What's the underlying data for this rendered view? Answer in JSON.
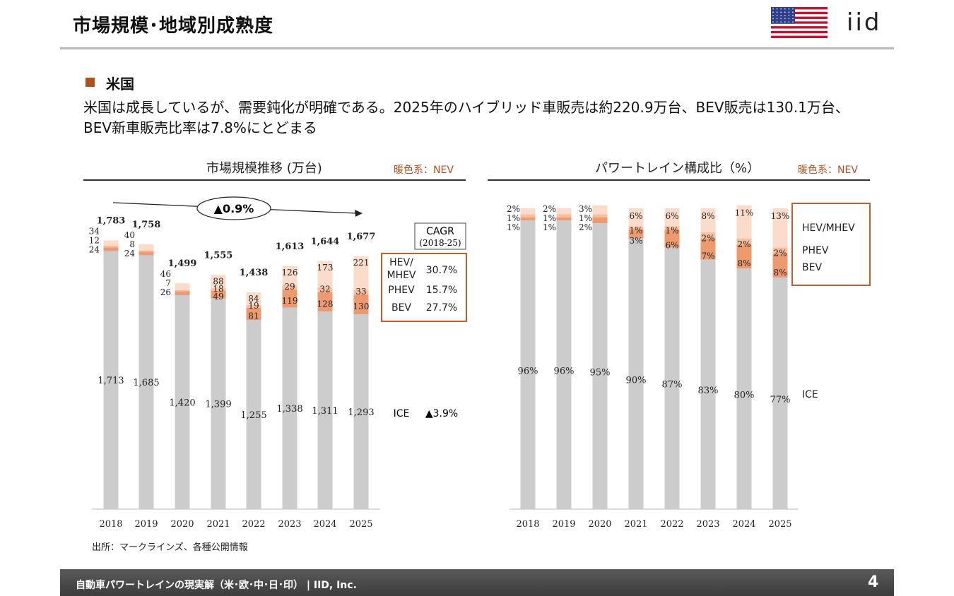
{
  "header": {
    "title": "市場規模･地域別成熟度",
    "logo": "iid",
    "flag_icon": "us-flag-icon"
  },
  "section": {
    "title": "米国"
  },
  "lead": "米国は成長しているが、需要鈍化が明確である。2025年のハイブリッド車販売は約220.9万台、BEV販売は130.1万台、BEV新車販売比率は7.8%にとどまる",
  "colors": {
    "ice": "#cccccc",
    "bev": "#ec9a6e",
    "phev": "#f6bf9f",
    "hev": "#fbdccb",
    "accent": "#c0602c"
  },
  "chart_left": {
    "title": "市場規模推移 (万台)",
    "note": "暖色系：NEV"
  },
  "chart_right": {
    "title": "パワートレイン構成比（%）",
    "note": "暖色系：NEV"
  },
  "source": "出所：マークラインズ、各種公開情報",
  "footer": {
    "text": "自動車パワートレインの現実解（米･欧･中･日･印） |  IID, Inc.",
    "page": "4"
  },
  "chart_data": [
    {
      "type": "bar",
      "stacked": true,
      "categories": [
        "2018",
        "2019",
        "2020",
        "2021",
        "2022",
        "2023",
        "2024",
        "2025"
      ],
      "series": [
        {
          "name": "ICE",
          "values": [
            1713,
            1685,
            1420,
            1399,
            1255,
            1338,
            1311,
            1293
          ]
        },
        {
          "name": "BEV",
          "values": [
            24,
            24,
            26,
            49,
            81,
            119,
            128,
            130
          ]
        },
        {
          "name": "PHEV",
          "values": [
            12,
            8,
            7,
            18,
            19,
            29,
            32,
            33
          ]
        },
        {
          "name": "HEV/MHEV",
          "values": [
            34,
            40,
            46,
            88,
            84,
            126,
            173,
            221
          ]
        }
      ],
      "totals": [
        "1,783",
        "1,758",
        "1,499",
        "1,555",
        "1,438",
        "1,613",
        "1,644",
        "1,677"
      ],
      "labels": {
        "ICE": [
          "1,713",
          "1,685",
          "1,420",
          "1,399",
          "1,255",
          "1,338",
          "1,311",
          "1,293"
        ],
        "BEV": [
          "24",
          "24",
          "26",
          "49",
          "81",
          "119",
          "128",
          "130"
        ],
        "PHEV": [
          "12",
          "8",
          "7",
          "18",
          "19",
          "29",
          "32",
          "33"
        ],
        "HEV/MHEV": [
          "34",
          "40",
          "46",
          "88",
          "84",
          "126",
          "173",
          "221"
        ]
      },
      "ylim": [
        0,
        2000
      ],
      "trend_label": "▲0.9%",
      "cagr": {
        "title": "CAGR",
        "period": "(2018-25)",
        "rows": [
          {
            "name_lines": [
              "HEV/",
              "MHEV"
            ],
            "value": "30.7%"
          },
          {
            "name_lines": [
              "PHEV"
            ],
            "value": "15.7%"
          },
          {
            "name_lines": [
              "BEV"
            ],
            "value": "27.7%"
          }
        ],
        "ice": {
          "name": "ICE",
          "value": "▲3.9%"
        }
      }
    },
    {
      "type": "bar",
      "stacked": true,
      "percent": true,
      "categories": [
        "2018",
        "2019",
        "2020",
        "2021",
        "2022",
        "2023",
        "2024",
        "2025"
      ],
      "series": [
        {
          "name": "ICE",
          "values": [
            96,
            96,
            95,
            90,
            87,
            83,
            80,
            77
          ]
        },
        {
          "name": "BEV",
          "values": [
            1,
            1,
            2,
            3,
            6,
            7,
            8,
            8
          ]
        },
        {
          "name": "PHEV",
          "values": [
            1,
            1,
            1,
            1,
            1,
            2,
            2,
            2
          ]
        },
        {
          "name": "HEV/MHEV",
          "values": [
            2,
            2,
            3,
            6,
            6,
            8,
            11,
            13
          ]
        }
      ],
      "labels": {
        "ICE": [
          "96%",
          "96%",
          "95%",
          "90%",
          "87%",
          "83%",
          "80%",
          "77%"
        ],
        "BEV": [
          "1%",
          "1%",
          "2%",
          "3%",
          "6%",
          "7%",
          "8%",
          "8%"
        ],
        "PHEV": [
          "1%",
          "1%",
          "1%",
          "1%",
          "1%",
          "2%",
          "2%",
          "2%"
        ],
        "HEV/MHEV": [
          "2%",
          "2%",
          "3%",
          "6%",
          "6%",
          "8%",
          "11%",
          "13%"
        ]
      },
      "ylim": [
        0,
        100
      ],
      "legend": [
        "HEV/MHEV",
        "PHEV",
        "BEV",
        "ICE"
      ]
    }
  ]
}
